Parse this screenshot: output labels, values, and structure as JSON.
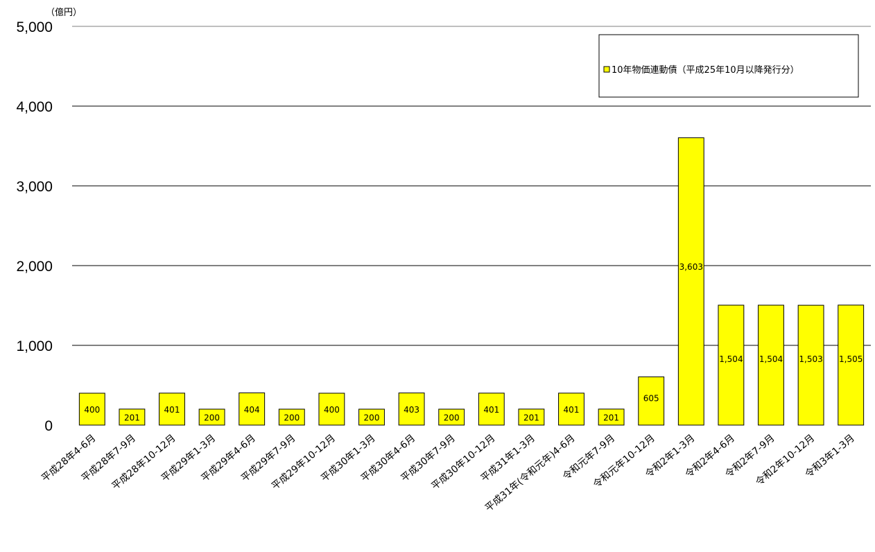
{
  "chart_data": {
    "type": "bar",
    "unit_label": "（億円）",
    "ylim": [
      0,
      5000
    ],
    "yticks": [
      "0",
      "1,000",
      "2,000",
      "3,000",
      "4,000",
      "5,000"
    ],
    "grid": true,
    "legend_position": "top-right",
    "series": [
      {
        "name": "10年物価連動債（平成25年10月以降発行分）",
        "color": "#ffff00",
        "values": [
          400,
          201,
          401,
          200,
          404,
          200,
          400,
          200,
          403,
          200,
          401,
          201,
          401,
          201,
          605,
          3603,
          1504,
          1504,
          1503,
          1505
        ],
        "labels": [
          "400",
          "201",
          "401",
          "200",
          "404",
          "200",
          "400",
          "200",
          "403",
          "200",
          "401",
          "201",
          "401",
          "201",
          "605",
          "3,603",
          "1,504",
          "1,504",
          "1,503",
          "1,505"
        ]
      }
    ],
    "categories": [
      "平成28年4-6月",
      "平成28年7-9月",
      "平成28年10-12月",
      "平成29年1-3月",
      "平成29年4-6月",
      "平成29年7-9月",
      "平成29年10-12月",
      "平成30年1-3月",
      "平成30年4-6月",
      "平成30年7-9月",
      "平成30年10-12月",
      "平成31年1-3月",
      "平成31年(令和元年)4-6月",
      "令和元年7-9月",
      "令和元年10-12月",
      "令和2年1-3月",
      "令和2年4-6月",
      "令和2年7-9月",
      "令和2年10-12月",
      "令和3年1-3月"
    ]
  }
}
